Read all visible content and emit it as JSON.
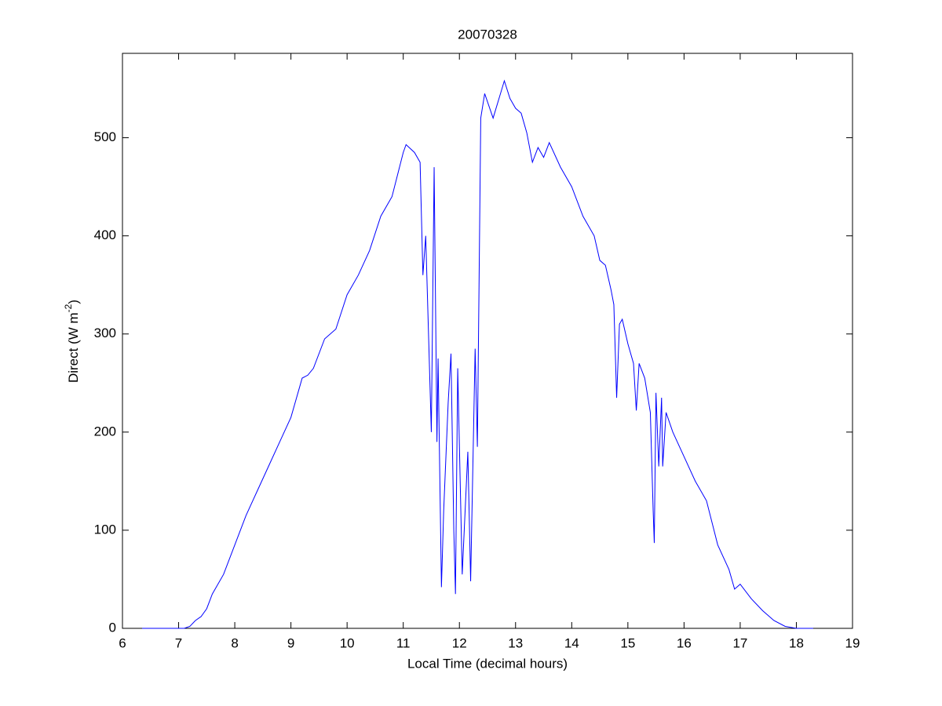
{
  "chart_data": {
    "type": "line",
    "title": "20070328",
    "x_label": "Local Time (decimal hours)",
    "y_label_parts": [
      "Direct (W m",
      "-2",
      ")"
    ],
    "x": [
      6.35,
      7.0,
      7.1,
      7.2,
      7.3,
      7.4,
      7.5,
      7.6,
      7.8,
      8.0,
      8.2,
      8.4,
      8.6,
      8.8,
      9.0,
      9.2,
      9.3,
      9.4,
      9.6,
      9.8,
      10.0,
      10.2,
      10.4,
      10.6,
      10.8,
      11.0,
      11.05,
      11.2,
      11.3,
      11.35,
      11.4,
      11.5,
      11.55,
      11.6,
      11.62,
      11.68,
      11.72,
      11.8,
      11.85,
      11.9,
      11.93,
      11.97,
      12.05,
      12.15,
      12.2,
      12.28,
      12.32,
      12.38,
      12.45,
      12.6,
      12.8,
      12.9,
      13.0,
      13.1,
      13.2,
      13.3,
      13.4,
      13.5,
      13.6,
      13.8,
      14.0,
      14.2,
      14.4,
      14.5,
      14.6,
      14.7,
      14.75,
      14.8,
      14.85,
      14.9,
      15.0,
      15.1,
      15.15,
      15.2,
      15.3,
      15.4,
      15.45,
      15.47,
      15.5,
      15.55,
      15.6,
      15.62,
      15.68,
      15.8,
      16.0,
      16.2,
      16.4,
      16.6,
      16.8,
      16.9,
      17.0,
      17.2,
      17.4,
      17.6,
      17.8,
      18.0,
      18.3
    ],
    "series": [
      {
        "color": "#0000ff",
        "values": [
          0,
          0,
          0,
          2,
          8,
          12,
          20,
          35,
          55,
          85,
          115,
          140,
          165,
          190,
          215,
          255,
          258,
          265,
          295,
          305,
          340,
          360,
          385,
          420,
          440,
          485,
          493,
          485,
          475,
          360,
          400,
          200,
          470,
          190,
          275,
          42,
          120,
          230,
          280,
          100,
          35,
          265,
          55,
          180,
          48,
          285,
          185,
          520,
          545,
          520,
          558,
          540,
          530,
          525,
          505,
          475,
          490,
          480,
          495,
          470,
          450,
          420,
          400,
          375,
          370,
          345,
          330,
          235,
          310,
          315,
          290,
          270,
          222,
          270,
          255,
          220,
          120,
          87,
          240,
          165,
          235,
          165,
          220,
          200,
          175,
          150,
          130,
          85,
          60,
          40,
          45,
          30,
          18,
          8,
          2,
          0,
          0
        ]
      }
    ],
    "xlim": [
      6,
      19
    ],
    "ylim": [
      0,
      586
    ],
    "xticks": [
      6,
      7,
      8,
      9,
      10,
      11,
      12,
      13,
      14,
      15,
      16,
      17,
      18,
      19
    ],
    "yticks": [
      0,
      100,
      200,
      300,
      400,
      500
    ]
  }
}
